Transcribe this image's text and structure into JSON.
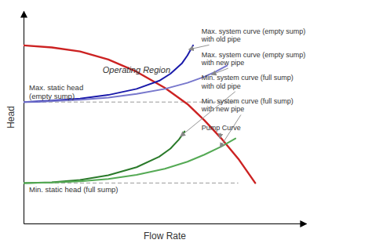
{
  "chart_data": {
    "type": "line",
    "xlabel": "Flow Rate",
    "ylabel": "Head",
    "series": [
      {
        "color": "#cc2222",
        "x": [
          0.0,
          0.1,
          0.2,
          0.3,
          0.4,
          0.5,
          0.58,
          0.64,
          0.7,
          0.76,
          0.82
        ],
        "values": [
          0.88,
          0.87,
          0.85,
          0.81,
          0.75,
          0.67,
          0.59,
          0.51,
          0.42,
          0.32,
          0.2
        ]
      },
      {
        "color": "#1a1aaa",
        "x": [
          0.0,
          0.05,
          0.1,
          0.2,
          0.3,
          0.4,
          0.48,
          0.52,
          0.56,
          0.58,
          0.6
        ],
        "values": [
          0.6,
          0.603,
          0.607,
          0.617,
          0.635,
          0.665,
          0.705,
          0.74,
          0.79,
          0.83,
          0.88
        ]
      },
      {
        "color": "#7777cc",
        "x": [
          0.0,
          0.05,
          0.1,
          0.2,
          0.3,
          0.4,
          0.5,
          0.58,
          0.64,
          0.68,
          0.72
        ],
        "values": [
          0.6,
          0.601,
          0.604,
          0.611,
          0.622,
          0.64,
          0.665,
          0.695,
          0.725,
          0.75,
          0.78
        ]
      },
      {
        "color": "#2a7a2a",
        "x": [
          0.0,
          0.1,
          0.2,
          0.3,
          0.4,
          0.48,
          0.52,
          0.55,
          0.57
        ],
        "values": [
          0.2,
          0.203,
          0.215,
          0.238,
          0.278,
          0.33,
          0.37,
          0.415,
          0.455
        ]
      },
      {
        "color": "#55aa55",
        "x": [
          0.0,
          0.1,
          0.2,
          0.3,
          0.4,
          0.5,
          0.58,
          0.64,
          0.7,
          0.75
        ],
        "values": [
          0.2,
          0.202,
          0.208,
          0.22,
          0.24,
          0.27,
          0.305,
          0.34,
          0.38,
          0.42
        ]
      }
    ],
    "xlim": [
      0.0,
      1.0
    ],
    "ylim": [
      0.0,
      1.05
    ],
    "xticks": [],
    "yticks": [],
    "tick_labels": false,
    "grid": false,
    "hlines": [
      {
        "value": 0.6,
        "x_end": 0.76,
        "color": "#999999",
        "line_style": "dashed",
        "label": "Max. static head\n(empty sump)"
      },
      {
        "value": 0.2,
        "x_end": 0.76,
        "color": "#999999",
        "line_style": "dashed",
        "label": "Min. static head (full sump)"
      }
    ],
    "text_labels": [
      {
        "text": "Operating Region",
        "x": 0.28,
        "y": 0.76
      }
    ],
    "annotations": [
      {
        "text": "Max. system curve (empty sump)\nwith old pipe",
        "x": 0.585,
        "y": 0.86,
        "text_x": 0.63,
        "text_y": 0.93
      },
      {
        "text": "Max. system curve (empty sump)\nwith new pipe",
        "x": 0.665,
        "y": 0.735,
        "text_x": 0.63,
        "text_y": 0.815
      },
      {
        "text": "Min. system curve (full sump)\nwith old pipe",
        "x": 0.555,
        "y": 0.43,
        "text_x": 0.63,
        "text_y": 0.7
      },
      {
        "text": "Min. system curve (full sump)\nwith new pipe",
        "x": 0.695,
        "y": 0.375,
        "text_x": 0.63,
        "text_y": 0.585
      },
      {
        "text": "Pump Curve",
        "x": 0.695,
        "y": 0.42,
        "text_x": 0.63,
        "text_y": 0.475
      }
    ]
  }
}
